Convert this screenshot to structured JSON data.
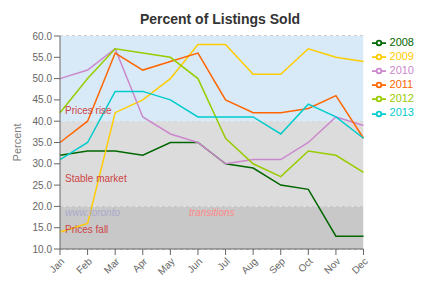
{
  "chart_data": {
    "type": "line",
    "title": "Percent of Listings Sold",
    "y_label": "Percent",
    "categories": [
      "Jan",
      "Feb",
      "Mar",
      "Apr",
      "May",
      "Jun",
      "Jul",
      "Aug",
      "Sep",
      "Oct",
      "Nov",
      "Dec"
    ],
    "series": [
      {
        "name": "2008",
        "color": "#006600",
        "values": [
          32,
          33,
          33,
          32,
          35,
          35,
          30,
          29,
          25,
          24,
          13,
          13
        ]
      },
      {
        "name": "2009",
        "color": "#ffcc00",
        "values": [
          14,
          16,
          42,
          45,
          50,
          58,
          58,
          51,
          51,
          57,
          55,
          54
        ]
      },
      {
        "name": "2010",
        "color": "#cc88cc",
        "values": [
          50,
          52,
          57,
          41,
          37,
          35,
          30,
          31,
          31,
          35,
          41,
          39
        ]
      },
      {
        "name": "2011",
        "color": "#ff6600",
        "values": [
          35,
          40,
          56,
          52,
          54,
          56,
          45,
          42,
          42,
          43,
          46,
          36
        ]
      },
      {
        "name": "2012",
        "color": "#99cc00",
        "values": [
          42,
          50,
          57,
          56,
          55,
          50,
          36,
          30,
          27,
          33,
          32,
          28
        ]
      },
      {
        "name": "2013",
        "color": "#00cccc",
        "values": [
          31,
          35,
          47,
          47,
          45,
          41,
          41,
          41,
          37,
          44,
          41,
          36
        ]
      }
    ],
    "ylim": [
      10.0,
      60.0
    ],
    "yticks": [
      {
        "value": 10,
        "label": "10.0"
      },
      {
        "value": 15,
        "label": "15.0"
      },
      {
        "value": 20,
        "label": "20.0"
      },
      {
        "value": 25,
        "label": "25.0"
      },
      {
        "value": 30,
        "label": "30.0"
      },
      {
        "value": 35,
        "label": "35.0"
      },
      {
        "value": 40,
        "label": "40.0"
      },
      {
        "value": 45,
        "label": "45.0"
      },
      {
        "value": 50,
        "label": "50.0"
      },
      {
        "value": 55,
        "label": "55.0"
      },
      {
        "value": 60,
        "label": "60.0"
      }
    ],
    "bands": [
      {
        "ymin": 10.0,
        "ymax": 20.0,
        "color": "#c8c8c8"
      },
      {
        "ymin": 20.0,
        "ymax": 40.0,
        "color": "#dcdcdc"
      },
      {
        "ymin": 40.0,
        "ymax": 60.0,
        "color": "#d8eaf8"
      }
    ],
    "annotations": [
      {
        "text": "Prices rise",
        "y": 42.5,
        "color": "#cc4444"
      },
      {
        "text": "Stable market",
        "y": 26.5,
        "color": "#cc4444"
      },
      {
        "text": "Prices fall",
        "y": 14.5,
        "color": "#cc4444"
      },
      {
        "text": "www.toronto",
        "y": 18.5,
        "color": "#aaaacc"
      },
      {
        "text": "transitions",
        "y": 18.5,
        "color": "#ff8888"
      }
    ],
    "grid": "y",
    "legend": "right"
  }
}
